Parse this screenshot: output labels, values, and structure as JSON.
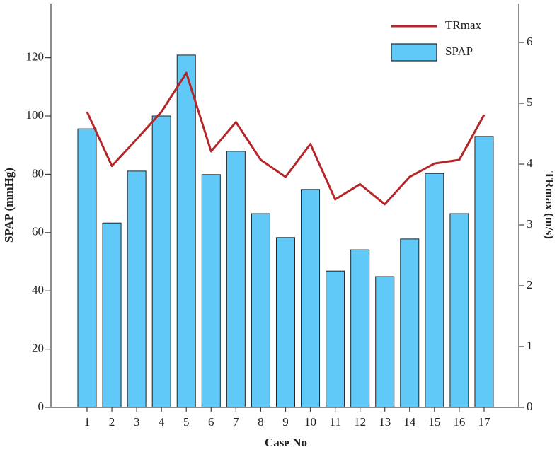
{
  "chart_data": {
    "type": "bar",
    "x_label": "Case No",
    "y_label": "SPAP (mmHg)",
    "y2_label": "TRmax (m/s)",
    "categories": [
      "1",
      "2",
      "3",
      "4",
      "5",
      "6",
      "7",
      "8",
      "9",
      "10",
      "11",
      "12",
      "13",
      "14",
      "15",
      "16",
      "17"
    ],
    "series": [
      {
        "name": "SPAP",
        "type": "bar",
        "color": "#61c9f8",
        "values": [
          95.6,
          63.3,
          81.1,
          100,
          120.9,
          79.9,
          87.9,
          66.5,
          58.3,
          74.8,
          46.8,
          54.1,
          44.9,
          57.8,
          80.3,
          66.5,
          93.0
        ]
      },
      {
        "name": "TRmax",
        "type": "line",
        "axis": "y2",
        "color": "#b5262a",
        "values": [
          4.86,
          3.97,
          4.41,
          4.86,
          5.5,
          4.21,
          4.69,
          4.07,
          3.79,
          4.33,
          3.42,
          3.67,
          3.34,
          3.79,
          4.01,
          4.07,
          4.81
        ]
      }
    ],
    "ylim": [
      0,
      138.6
    ],
    "yticks": [
      0,
      20,
      40,
      60,
      80,
      100,
      120
    ],
    "y2lim": [
      0,
      6.64
    ],
    "y2ticks": [
      0,
      1,
      2,
      3,
      4,
      5,
      6
    ],
    "grid": false,
    "legend": "top-right"
  }
}
